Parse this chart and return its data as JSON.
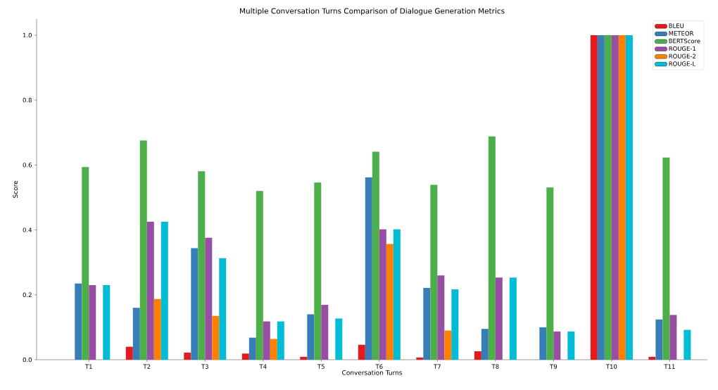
{
  "chart_data": {
    "type": "bar",
    "title": "Multiple Conversation Turns Comparison of Dialogue Generation Metrics",
    "xlabel": "Conversation Turns",
    "ylabel": "Score",
    "categories": [
      "T1",
      "T2",
      "T3",
      "T4",
      "T5",
      "T6",
      "T7",
      "T8",
      "T9",
      "T10",
      "T11"
    ],
    "series": [
      {
        "name": "BLEU",
        "color": "#e41a1c",
        "values": [
          0,
          0.04,
          0.022,
          0.019,
          0.009,
          0.046,
          0.007,
          0.026,
          0,
          1.0,
          0.009
        ]
      },
      {
        "name": "METEOR",
        "color": "#377eb8",
        "values": [
          0.235,
          0.16,
          0.344,
          0.068,
          0.14,
          0.562,
          0.221,
          0.095,
          0.1,
          1.0,
          0.124
        ]
      },
      {
        "name": "BERTScore",
        "color": "#4daf4a",
        "values": [
          0.594,
          0.676,
          0.581,
          0.52,
          0.546,
          0.641,
          0.539,
          0.688,
          0.531,
          1.0,
          0.623
        ]
      },
      {
        "name": "ROUGE-1",
        "color": "#984ea3",
        "values": [
          0.23,
          0.425,
          0.376,
          0.118,
          0.169,
          0.402,
          0.26,
          0.253,
          0.087,
          1.0,
          0.138
        ]
      },
      {
        "name": "ROUGE-2",
        "color": "#ff7f00",
        "values": [
          0,
          0.187,
          0.135,
          0.064,
          0,
          0.357,
          0.09,
          0,
          0,
          1.0,
          0
        ]
      },
      {
        "name": "ROUGE-L",
        "color": "#00bcd4",
        "values": [
          0.23,
          0.425,
          0.313,
          0.118,
          0.127,
          0.402,
          0.217,
          0.253,
          0.087,
          1.0,
          0.092
        ]
      }
    ],
    "ylim": [
      0,
      1.05
    ],
    "yticks": [
      {
        "value": 0,
        "label": "0.0"
      },
      {
        "value": 0.2,
        "label": "0.2"
      },
      {
        "value": 0.4,
        "label": "0.4"
      },
      {
        "value": 0.6,
        "label": "0.6"
      },
      {
        "value": 0.8,
        "label": "0.8"
      },
      {
        "value": 1.0,
        "label": "1.0"
      }
    ],
    "legend": "top right"
  }
}
